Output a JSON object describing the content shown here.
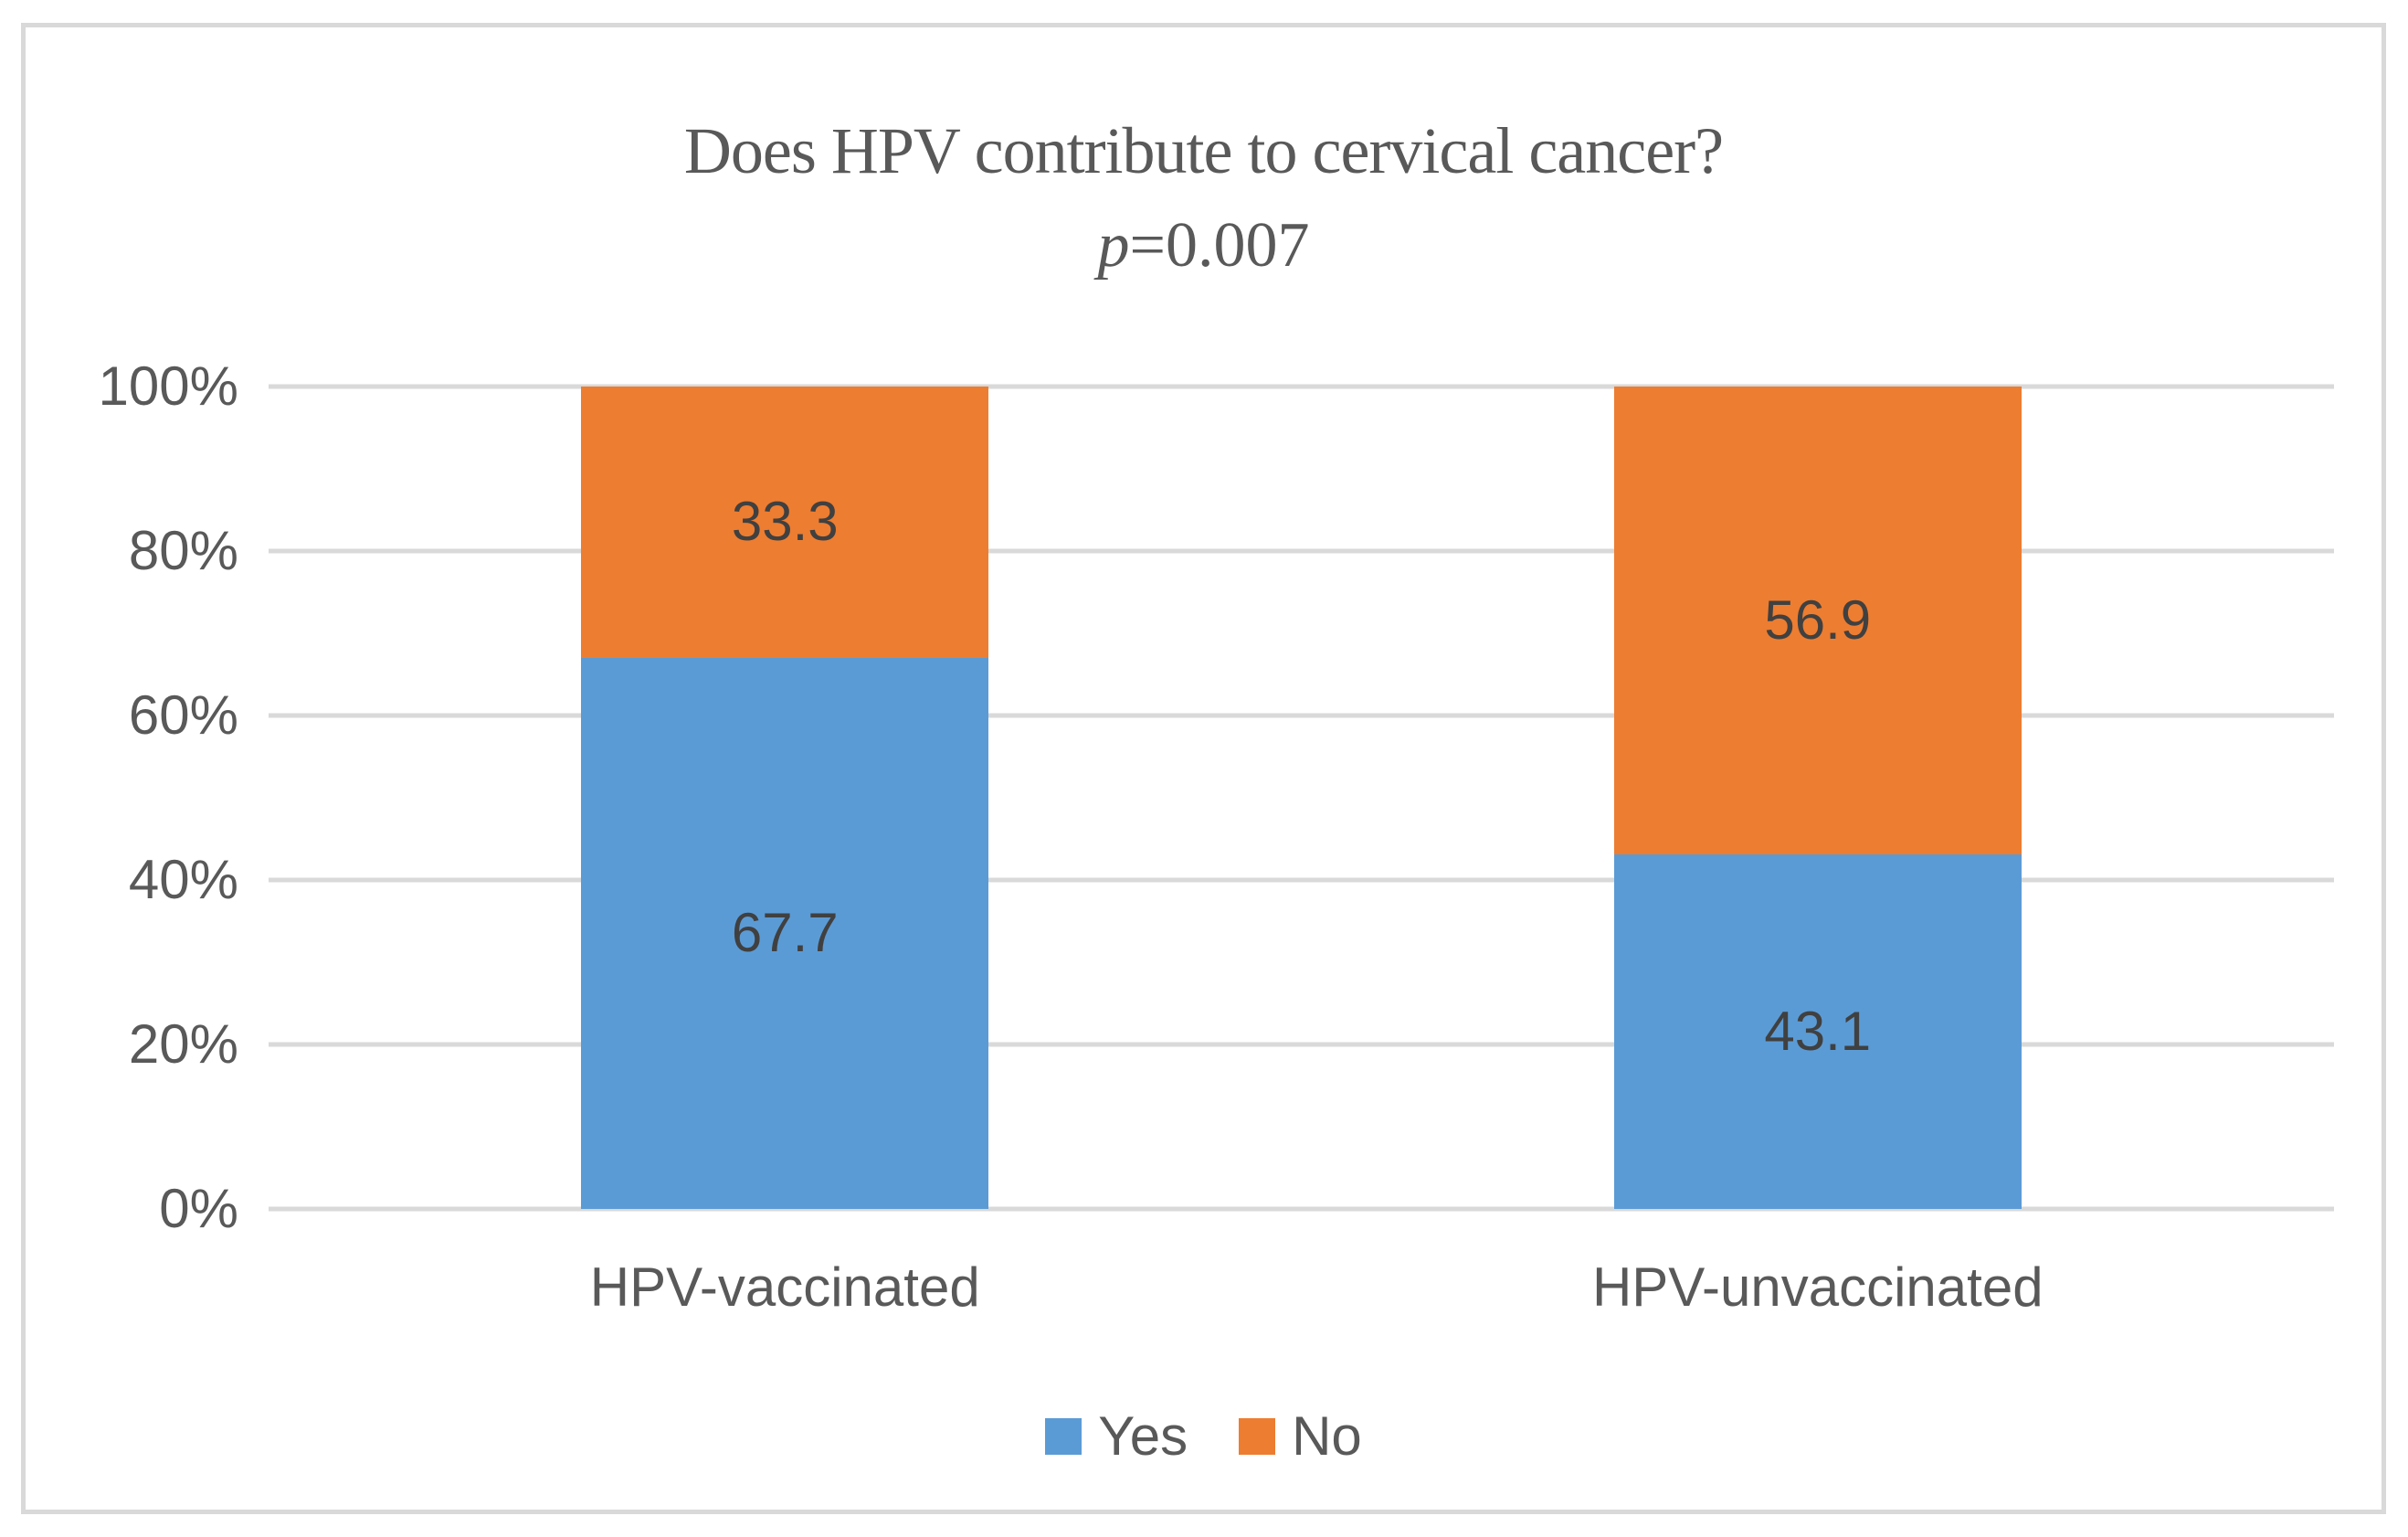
{
  "figure": {
    "title": "Does HPV contribute to cervical cancer?",
    "subtitle_symbol": "p",
    "subtitle_rest": "=0.007"
  },
  "chart_data": {
    "type": "bar",
    "subtype": "stacked-100-percent",
    "title": "Does HPV contribute to cervical cancer?",
    "subtitle": "p=0.007",
    "categories": [
      "HPV-vaccinated",
      "HPV-unvaccinated"
    ],
    "series": [
      {
        "name": "Yes",
        "color": "#5B9BD5",
        "values": [
          67.7,
          43.1
        ]
      },
      {
        "name": "No",
        "color": "#ED7D31",
        "values": [
          33.3,
          56.9
        ]
      }
    ],
    "data_labels": {
      "HPV-vaccinated": {
        "Yes": "67.7",
        "No": "33.3"
      },
      "HPV-unvaccinated": {
        "Yes": "43.1",
        "No": "56.9"
      }
    },
    "y_axis": {
      "ticks": [
        "0%",
        "20%",
        "40%",
        "60%",
        "80%",
        "100%"
      ],
      "min": 0,
      "max": 100,
      "tick_step": 20,
      "grid": true
    },
    "legend_position": "bottom",
    "legend_entries": [
      "Yes",
      "No"
    ]
  },
  "colors": {
    "series_yes": "#5B9BD5",
    "series_no": "#ED7D31",
    "gridline": "#D9D9D9",
    "frame_border": "#D9D9D9",
    "axis_text": "#595959",
    "title_text": "#595959",
    "data_label_text": "#404040",
    "background": "#FFFFFF"
  }
}
